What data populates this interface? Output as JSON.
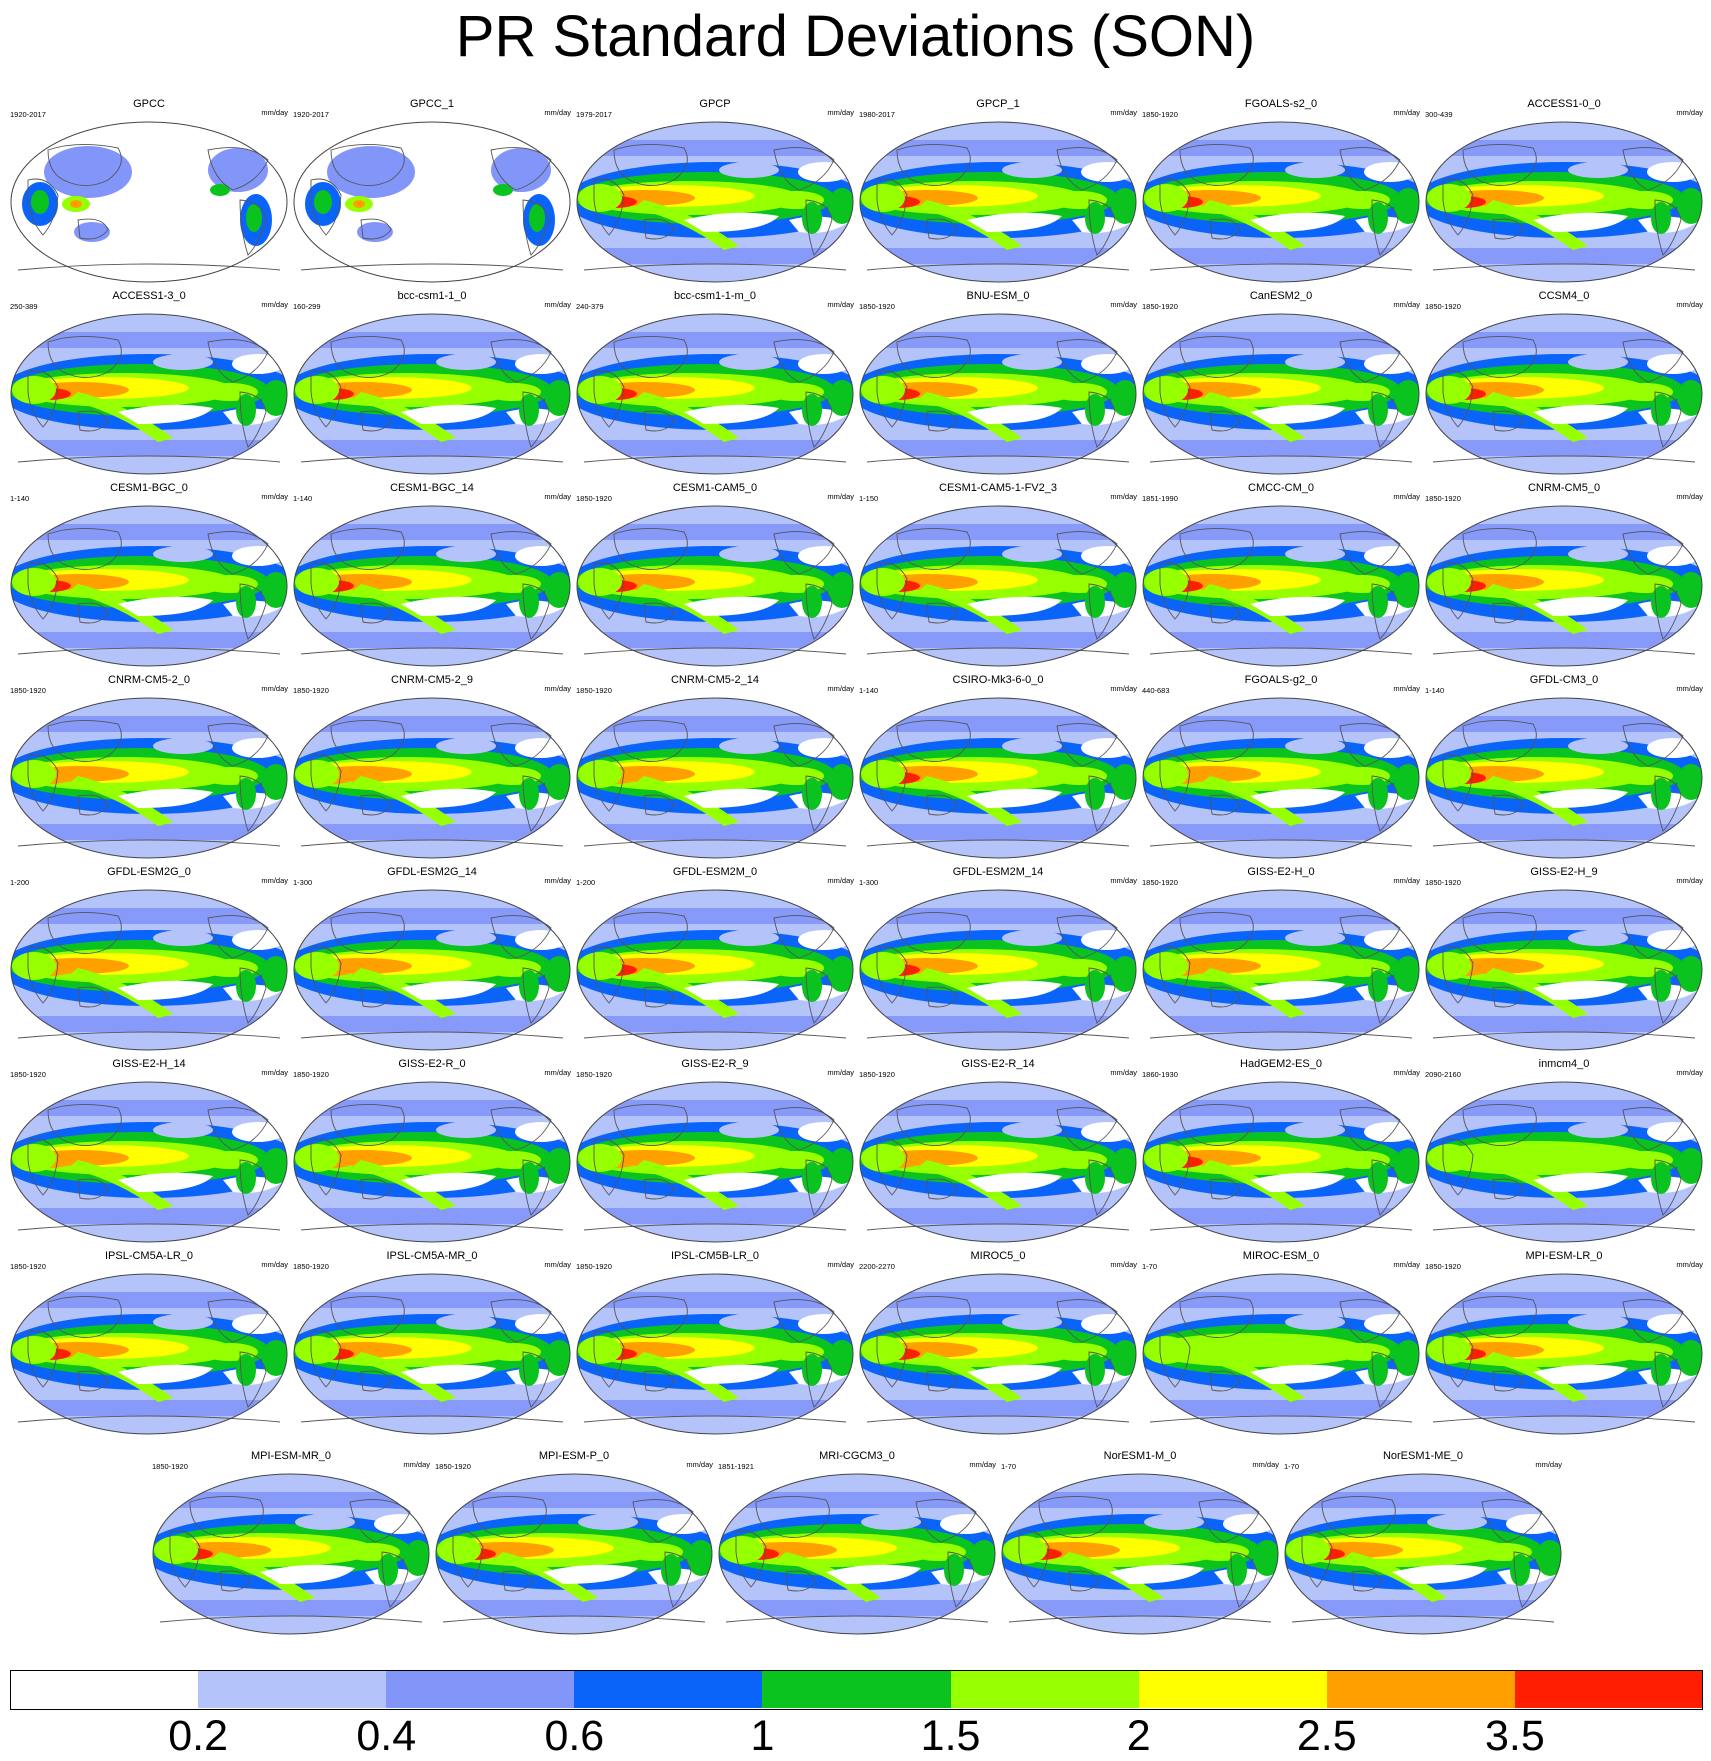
{
  "title": "PR Standard Deviations (SON)",
  "chart_data": {
    "type": "map-grid",
    "title": "PR Standard Deviations (SON)",
    "variable": "PR",
    "season": "SON",
    "units_label": "mm/day",
    "layout_rows": [
      6,
      6,
      6,
      6,
      6,
      6,
      6,
      5
    ],
    "panels": [
      {
        "name": "GPCC",
        "years": "1920-2017",
        "units": "mm/day",
        "max_level": 2.5
      },
      {
        "name": "GPCC_1",
        "years": "1920-2017",
        "units": "mm/day",
        "max_level": 2.5
      },
      {
        "name": "GPCP",
        "years": "1979-2017",
        "units": "mm/day",
        "max_level": 3.5
      },
      {
        "name": "GPCP_1",
        "years": "1980-2017",
        "units": "mm/day",
        "max_level": 3.5
      },
      {
        "name": "FGOALS-s2_0",
        "years": "1850-1920",
        "units": "mm/day",
        "max_level": 3.5
      },
      {
        "name": "ACCESS1-0_0",
        "years": "300-439",
        "units": "mm/day",
        "max_level": 3.5
      },
      {
        "name": "ACCESS1-3_0",
        "years": "250-389",
        "units": "mm/day",
        "max_level": 3.5
      },
      {
        "name": "bcc-csm1-1_0",
        "years": "160-299",
        "units": "mm/day",
        "max_level": 3.5
      },
      {
        "name": "bcc-csm1-1-m_0",
        "years": "240-379",
        "units": "mm/day",
        "max_level": 3.5
      },
      {
        "name": "BNU-ESM_0",
        "years": "1850-1920",
        "units": "mm/day",
        "max_level": 3.5
      },
      {
        "name": "CanESM2_0",
        "years": "1850-1920",
        "units": "mm/day",
        "max_level": 3.5
      },
      {
        "name": "CCSM4_0",
        "years": "1850-1920",
        "units": "mm/day",
        "max_level": 3.5
      },
      {
        "name": "CESM1-BGC_0",
        "years": "1-140",
        "units": "mm/day",
        "max_level": 3.5
      },
      {
        "name": "CESM1-BGC_14",
        "years": "1-140",
        "units": "mm/day",
        "max_level": 3.5
      },
      {
        "name": "CESM1-CAM5_0",
        "years": "1850-1920",
        "units": "mm/day",
        "max_level": 3.5
      },
      {
        "name": "CESM1-CAM5-1-FV2_3",
        "years": "1-150",
        "units": "mm/day",
        "max_level": 3.5
      },
      {
        "name": "CMCC-CM_0",
        "years": "1851-1990",
        "units": "mm/day",
        "max_level": 3.5
      },
      {
        "name": "CNRM-CM5_0",
        "years": "1850-1920",
        "units": "mm/day",
        "max_level": 3.5
      },
      {
        "name": "CNRM-CM5-2_0",
        "years": "1850-1920",
        "units": "mm/day",
        "max_level": 2.5
      },
      {
        "name": "CNRM-CM5-2_9",
        "years": "1850-1920",
        "units": "mm/day",
        "max_level": 2.5
      },
      {
        "name": "CNRM-CM5-2_14",
        "years": "1850-1920",
        "units": "mm/day",
        "max_level": 2.5
      },
      {
        "name": "CSIRO-Mk3-6-0_0",
        "years": "1-140",
        "units": "mm/day",
        "max_level": 3.5
      },
      {
        "name": "FGOALS-g2_0",
        "years": "440-683",
        "units": "mm/day",
        "max_level": 2.5
      },
      {
        "name": "GFDL-CM3_0",
        "years": "1-140",
        "units": "mm/day",
        "max_level": 3.5
      },
      {
        "name": "GFDL-ESM2G_0",
        "years": "1-200",
        "units": "mm/day",
        "max_level": 2.5
      },
      {
        "name": "GFDL-ESM2G_14",
        "years": "1-300",
        "units": "mm/day",
        "max_level": 2.5
      },
      {
        "name": "GFDL-ESM2M_0",
        "years": "1-200",
        "units": "mm/day",
        "max_level": 3.5
      },
      {
        "name": "GFDL-ESM2M_14",
        "years": "1-300",
        "units": "mm/day",
        "max_level": 3.5
      },
      {
        "name": "GISS-E2-H_0",
        "years": "1850-1920",
        "units": "mm/day",
        "max_level": 2.5
      },
      {
        "name": "GISS-E2-H_9",
        "years": "1850-1920",
        "units": "mm/day",
        "max_level": 2.5
      },
      {
        "name": "GISS-E2-H_14",
        "years": "1850-1920",
        "units": "mm/day",
        "max_level": 2.5
      },
      {
        "name": "GISS-E2-R_0",
        "years": "1850-1920",
        "units": "mm/day",
        "max_level": 2.5
      },
      {
        "name": "GISS-E2-R_9",
        "years": "1850-1920",
        "units": "mm/day",
        "max_level": 2.5
      },
      {
        "name": "GISS-E2-R_14",
        "years": "1850-1920",
        "units": "mm/day",
        "max_level": 2.5
      },
      {
        "name": "HadGEM2-ES_0",
        "years": "1860-1930",
        "units": "mm/day",
        "max_level": 3.5
      },
      {
        "name": "inmcm4_0",
        "years": "2090-2160",
        "units": "mm/day",
        "max_level": 1.5
      },
      {
        "name": "IPSL-CM5A-LR_0",
        "years": "1850-1920",
        "units": "mm/day",
        "max_level": 3.5
      },
      {
        "name": "IPSL-CM5A-MR_0",
        "years": "1850-1920",
        "units": "mm/day",
        "max_level": 3.5
      },
      {
        "name": "IPSL-CM5B-LR_0",
        "years": "1850-1920",
        "units": "mm/day",
        "max_level": 3.5
      },
      {
        "name": "MIROC5_0",
        "years": "2200-2270",
        "units": "mm/day",
        "max_level": 3.5
      },
      {
        "name": "MIROC-ESM_0",
        "years": "1-70",
        "units": "mm/day",
        "max_level": 1.5
      },
      {
        "name": "MPI-ESM-LR_0",
        "years": "1850-1920",
        "units": "mm/day",
        "max_level": 3.5
      },
      {
        "name": "MPI-ESM-MR_0",
        "years": "1850-1920",
        "units": "mm/day",
        "max_level": 3.5
      },
      {
        "name": "MPI-ESM-P_0",
        "years": "1850-1920",
        "units": "mm/day",
        "max_level": 3.5
      },
      {
        "name": "MRI-CGCM3_0",
        "years": "1851-1921",
        "units": "mm/day",
        "max_level": 3.5
      },
      {
        "name": "NorESM1-M_0",
        "years": "1-70",
        "units": "mm/day",
        "max_level": 3.5
      },
      {
        "name": "NorESM1-ME_0",
        "years": "1-70",
        "units": "mm/day",
        "max_level": 3.5
      }
    ],
    "colorbar": {
      "levels": [
        0.2,
        0.4,
        0.6,
        1,
        1.5,
        2,
        2.5,
        3.5
      ],
      "labels": [
        "0.2",
        "0.4",
        "0.6",
        "1",
        "1.5",
        "2",
        "2.5",
        "3.5"
      ],
      "colors": [
        "#ffffff",
        "#b4c3fa",
        "#8296fa",
        "#0a64fa",
        "#0ac31e",
        "#96ff00",
        "#ffff00",
        "#ffa000",
        "#ff1e00"
      ]
    }
  }
}
